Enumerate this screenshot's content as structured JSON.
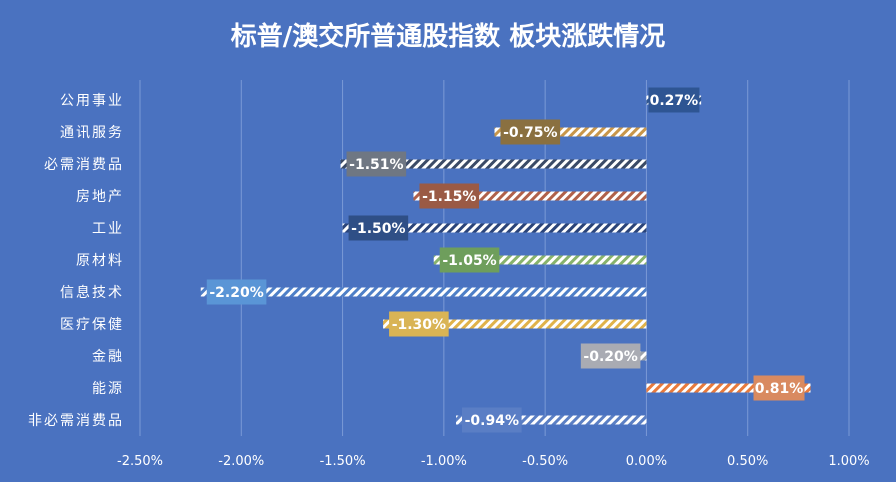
{
  "chart_data": {
    "type": "bar",
    "orientation": "horizontal",
    "title": "标普/澳交所普通股指数 板块涨跌情况",
    "categories": [
      "公用事业",
      "通讯服务",
      "必需消费品",
      "房地产",
      "工业",
      "原材料",
      "信息技术",
      "医疗保健",
      "金融",
      "能源",
      "非必需消费品"
    ],
    "values": [
      0.27,
      -0.75,
      -1.51,
      -1.15,
      -1.5,
      -1.05,
      -2.2,
      -1.3,
      -0.2,
      0.81,
      -0.94
    ],
    "data_labels": [
      "0.27%",
      "-0.75%",
      "-1.51%",
      "-1.15%",
      "-1.50%",
      "-1.05%",
      "-2.20%",
      "-1.30%",
      "-0.20%",
      "0.81%",
      "-0.94%"
    ],
    "xlim": [
      -2.5,
      1.0
    ],
    "x_ticks": [
      -2.5,
      -2.0,
      -1.5,
      -1.0,
      -0.5,
      0.0,
      0.5,
      1.0
    ],
    "x_tick_labels": [
      "-2.50%",
      "-2.00%",
      "-1.50%",
      "-1.00%",
      "-0.50%",
      "0.00%",
      "0.50%",
      "1.00%"
    ],
    "grid": true,
    "legend": "none",
    "colors": {
      "background": "#4a72c0",
      "grid": "#7b9ad6",
      "text": "#ffffff",
      "label_boxes": [
        "#2e5593",
        "#8a7040",
        "#6f7783",
        "#9a5a45",
        "#2f4f86",
        "#6e9e5c",
        "#5a95d6",
        "#d9b455",
        "#a9abb3",
        "#d98a60",
        "#5a7ec5"
      ],
      "bar_stripes": [
        "#30568f",
        "#c8964a",
        "#3a4a66",
        "#b0614a",
        "#2b4479",
        "#88b36c",
        "#4e7fc7",
        "#e0b24a",
        "#9aa0aa",
        "#e87a3c",
        "#5b7fc4"
      ]
    }
  }
}
